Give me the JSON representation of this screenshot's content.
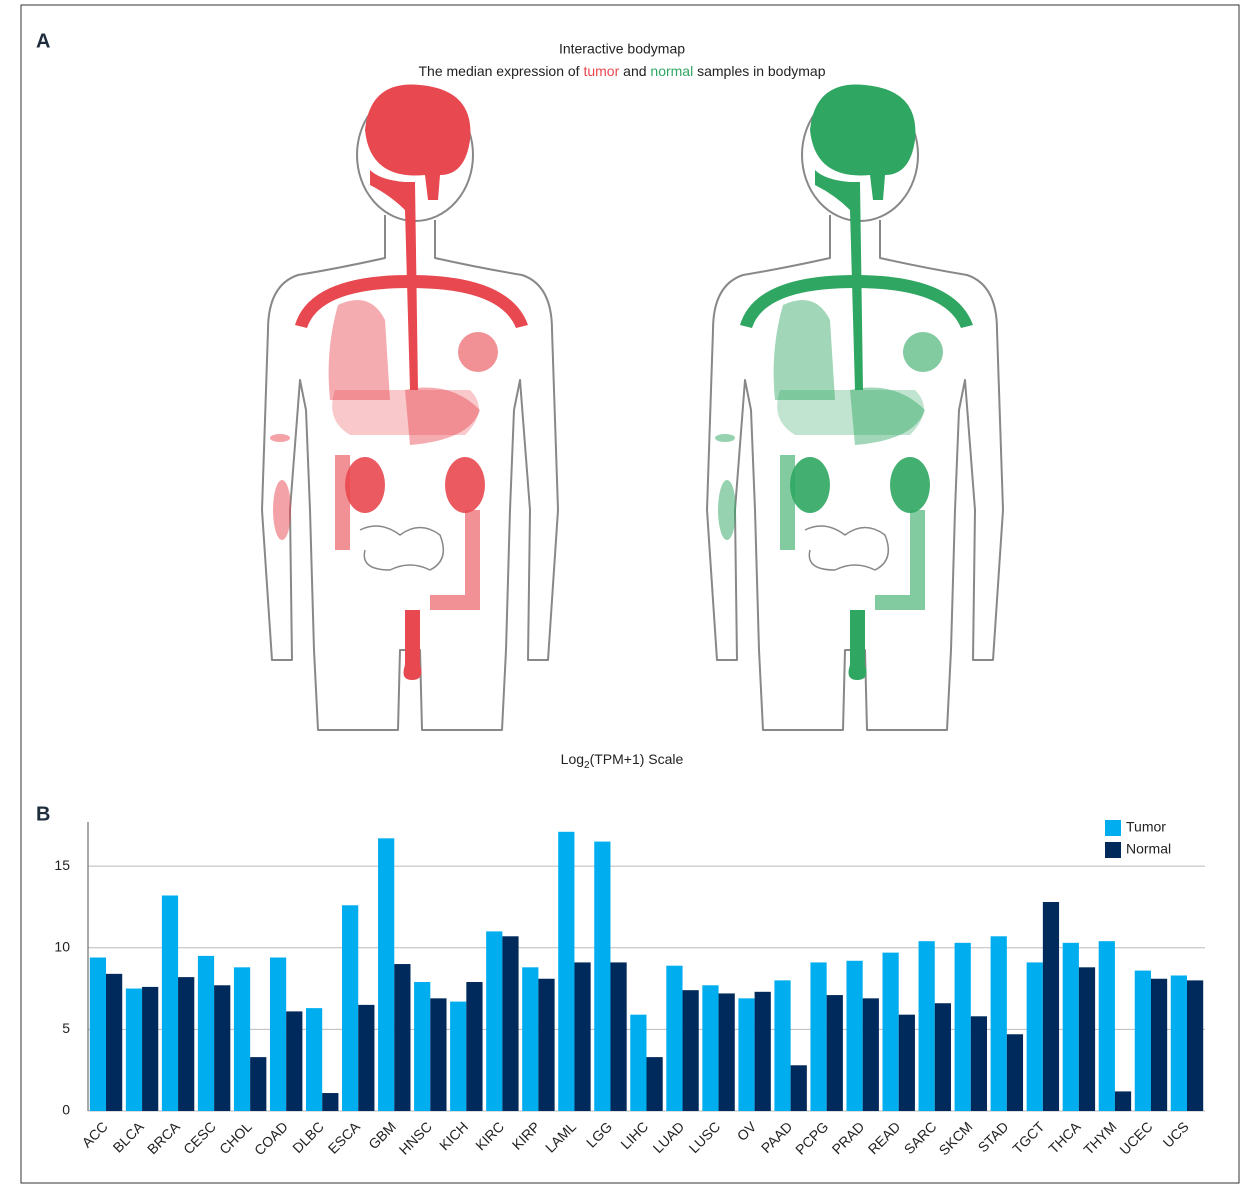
{
  "panel_a": {
    "label": "A",
    "title": "Interactive bodymap",
    "subtitle": {
      "before": "The median expression of",
      "tumor": "tumor",
      "middle": "and",
      "normal": "normal",
      "after": "samples in bodymap"
    },
    "tumor_color": "#e8484f",
    "normal_color": "#2fa661",
    "scale_label": {
      "base": "Log",
      "sub": "2",
      "rest": "(TPM+1) Scale"
    }
  },
  "panel_b": {
    "label": "B"
  },
  "chart_data": {
    "type": "bar",
    "categories": [
      "ACC",
      "BLCA",
      "BRCA",
      "CESC",
      "CHOL",
      "COAD",
      "DLBC",
      "ESCA",
      "GBM",
      "HNSC",
      "KICH",
      "KIRC",
      "KIRP",
      "LAML",
      "LGG",
      "LIHC",
      "LUAD",
      "LUSC",
      "OV",
      "PAAD",
      "PCPG",
      "PRAD",
      "READ",
      "SARC",
      "SKCM",
      "STAD",
      "TGCT",
      "THCA",
      "THYM",
      "UCEC",
      "UCS"
    ],
    "series": [
      {
        "name": "Tumor",
        "color": "#00adef",
        "values": [
          9.4,
          7.5,
          13.2,
          9.5,
          8.8,
          9.4,
          6.3,
          12.6,
          16.7,
          7.9,
          6.7,
          11.0,
          8.8,
          17.1,
          16.5,
          5.9,
          8.9,
          7.7,
          6.9,
          8.0,
          9.1,
          9.2,
          9.7,
          10.4,
          10.3,
          10.7,
          9.1,
          10.3,
          10.4,
          8.6,
          8.3
        ]
      },
      {
        "name": "Normal",
        "color": "#002a5c",
        "values": [
          8.4,
          7.6,
          8.2,
          7.7,
          3.3,
          6.1,
          1.1,
          6.5,
          9.0,
          6.9,
          7.9,
          10.7,
          8.1,
          9.1,
          9.1,
          3.3,
          7.4,
          7.2,
          7.3,
          2.8,
          7.1,
          6.9,
          5.9,
          6.6,
          5.8,
          4.7,
          12.8,
          8.8,
          1.2,
          8.1,
          8.0
        ]
      }
    ],
    "ylim": [
      0,
      17.7
    ],
    "yticks": [
      0,
      5,
      10,
      15
    ],
    "grid": true,
    "legend": "top-right"
  }
}
